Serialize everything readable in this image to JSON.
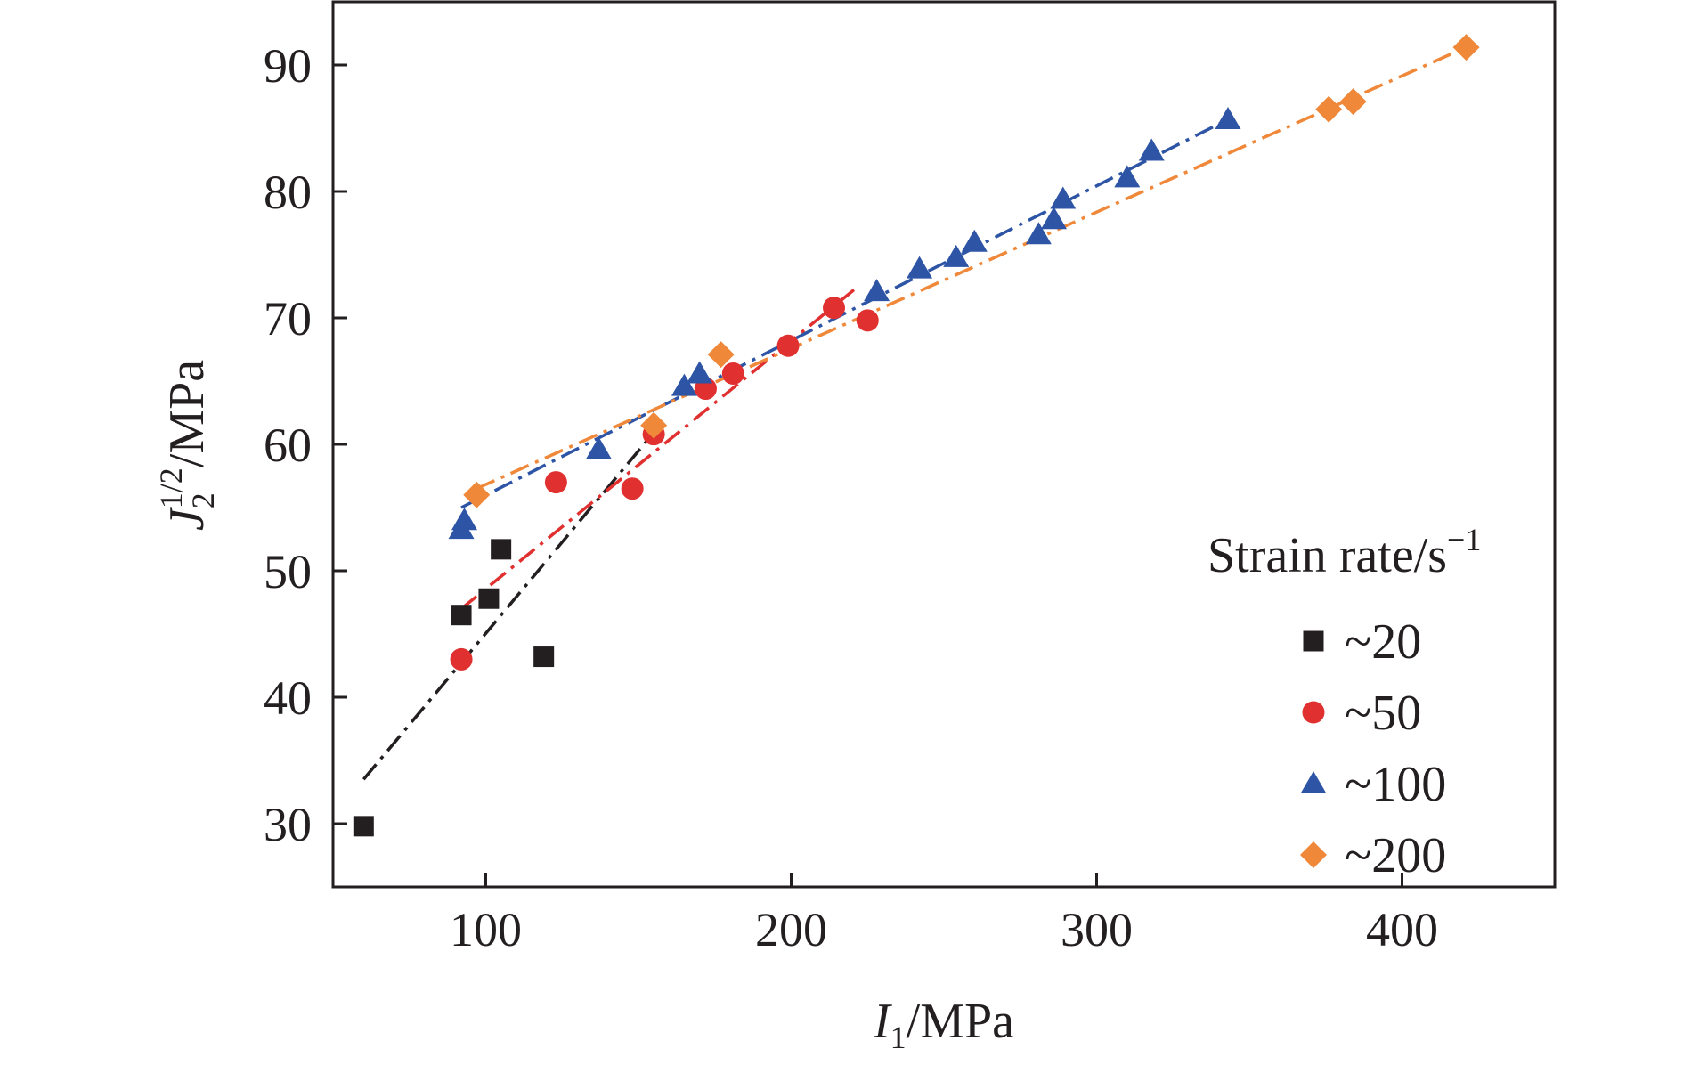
{
  "chart_data": {
    "type": "scatter",
    "xlabel": {
      "main": "I",
      "sub": "1",
      "unit": "/MPa"
    },
    "ylabel": {
      "main": "J",
      "sub": "2",
      "sup": "1/2",
      "unit": "/MPa"
    },
    "xlim": [
      50,
      450
    ],
    "ylim": [
      25,
      95
    ],
    "xticks": [
      100,
      200,
      300,
      400
    ],
    "yticks": [
      30,
      40,
      50,
      60,
      70,
      80,
      90
    ],
    "grid": false,
    "legend": {
      "placement": "lower-right",
      "title": "Strain rate/s",
      "title_sup": "−1"
    },
    "series": [
      {
        "name": "~20",
        "marker": "square",
        "color": "#231f20",
        "points": [
          [
            60,
            29.8
          ],
          [
            92,
            46.5
          ],
          [
            101,
            47.8
          ],
          [
            105,
            51.7
          ],
          [
            119,
            43.2
          ]
        ],
        "fit": {
          "style": "dashdot",
          "x": [
            60,
            157
          ],
          "y": [
            33.5,
            61.5
          ]
        }
      },
      {
        "name": "~50",
        "marker": "circle",
        "color": "#e03030",
        "points": [
          [
            92,
            43.0
          ],
          [
            123,
            57.0
          ],
          [
            148,
            56.5
          ],
          [
            155,
            60.8
          ],
          [
            172,
            64.4
          ],
          [
            181,
            65.6
          ],
          [
            199,
            67.8
          ],
          [
            214,
            70.8
          ],
          [
            225,
            69.8
          ]
        ],
        "fit": {
          "style": "dashdot",
          "x": [
            92,
            222
          ],
          "y": [
            47.0,
            72.5
          ]
        }
      },
      {
        "name": "~100",
        "marker": "triangle",
        "color": "#2e55a5",
        "points": [
          [
            92,
            53.3
          ],
          [
            93,
            54.0
          ],
          [
            137,
            59.6
          ],
          [
            165,
            64.6
          ],
          [
            170,
            65.6
          ],
          [
            228,
            72.1
          ],
          [
            242,
            73.9
          ],
          [
            254,
            74.8
          ],
          [
            260,
            76.0
          ],
          [
            281,
            76.6
          ],
          [
            286,
            77.8
          ],
          [
            289,
            79.4
          ],
          [
            310,
            81.1
          ],
          [
            318,
            83.2
          ],
          [
            343,
            85.7
          ]
        ],
        "fit": {
          "style": "dashdot",
          "x": [
            92,
            343
          ],
          "y": [
            55.0,
            85.7
          ]
        }
      },
      {
        "name": "~200",
        "marker": "diamond",
        "color": "#f0883a",
        "points": [
          [
            97,
            56.0
          ],
          [
            155,
            61.5
          ],
          [
            177,
            67.1
          ],
          [
            376,
            86.5
          ],
          [
            384,
            87.1
          ],
          [
            421,
            91.4
          ]
        ],
        "fit": {
          "style": "dashdot",
          "x": [
            97,
            421
          ],
          "y": [
            56.5,
            91.4
          ]
        }
      }
    ]
  },
  "colors": {
    "axis": "#231f20",
    "background": "#ffffff"
  }
}
